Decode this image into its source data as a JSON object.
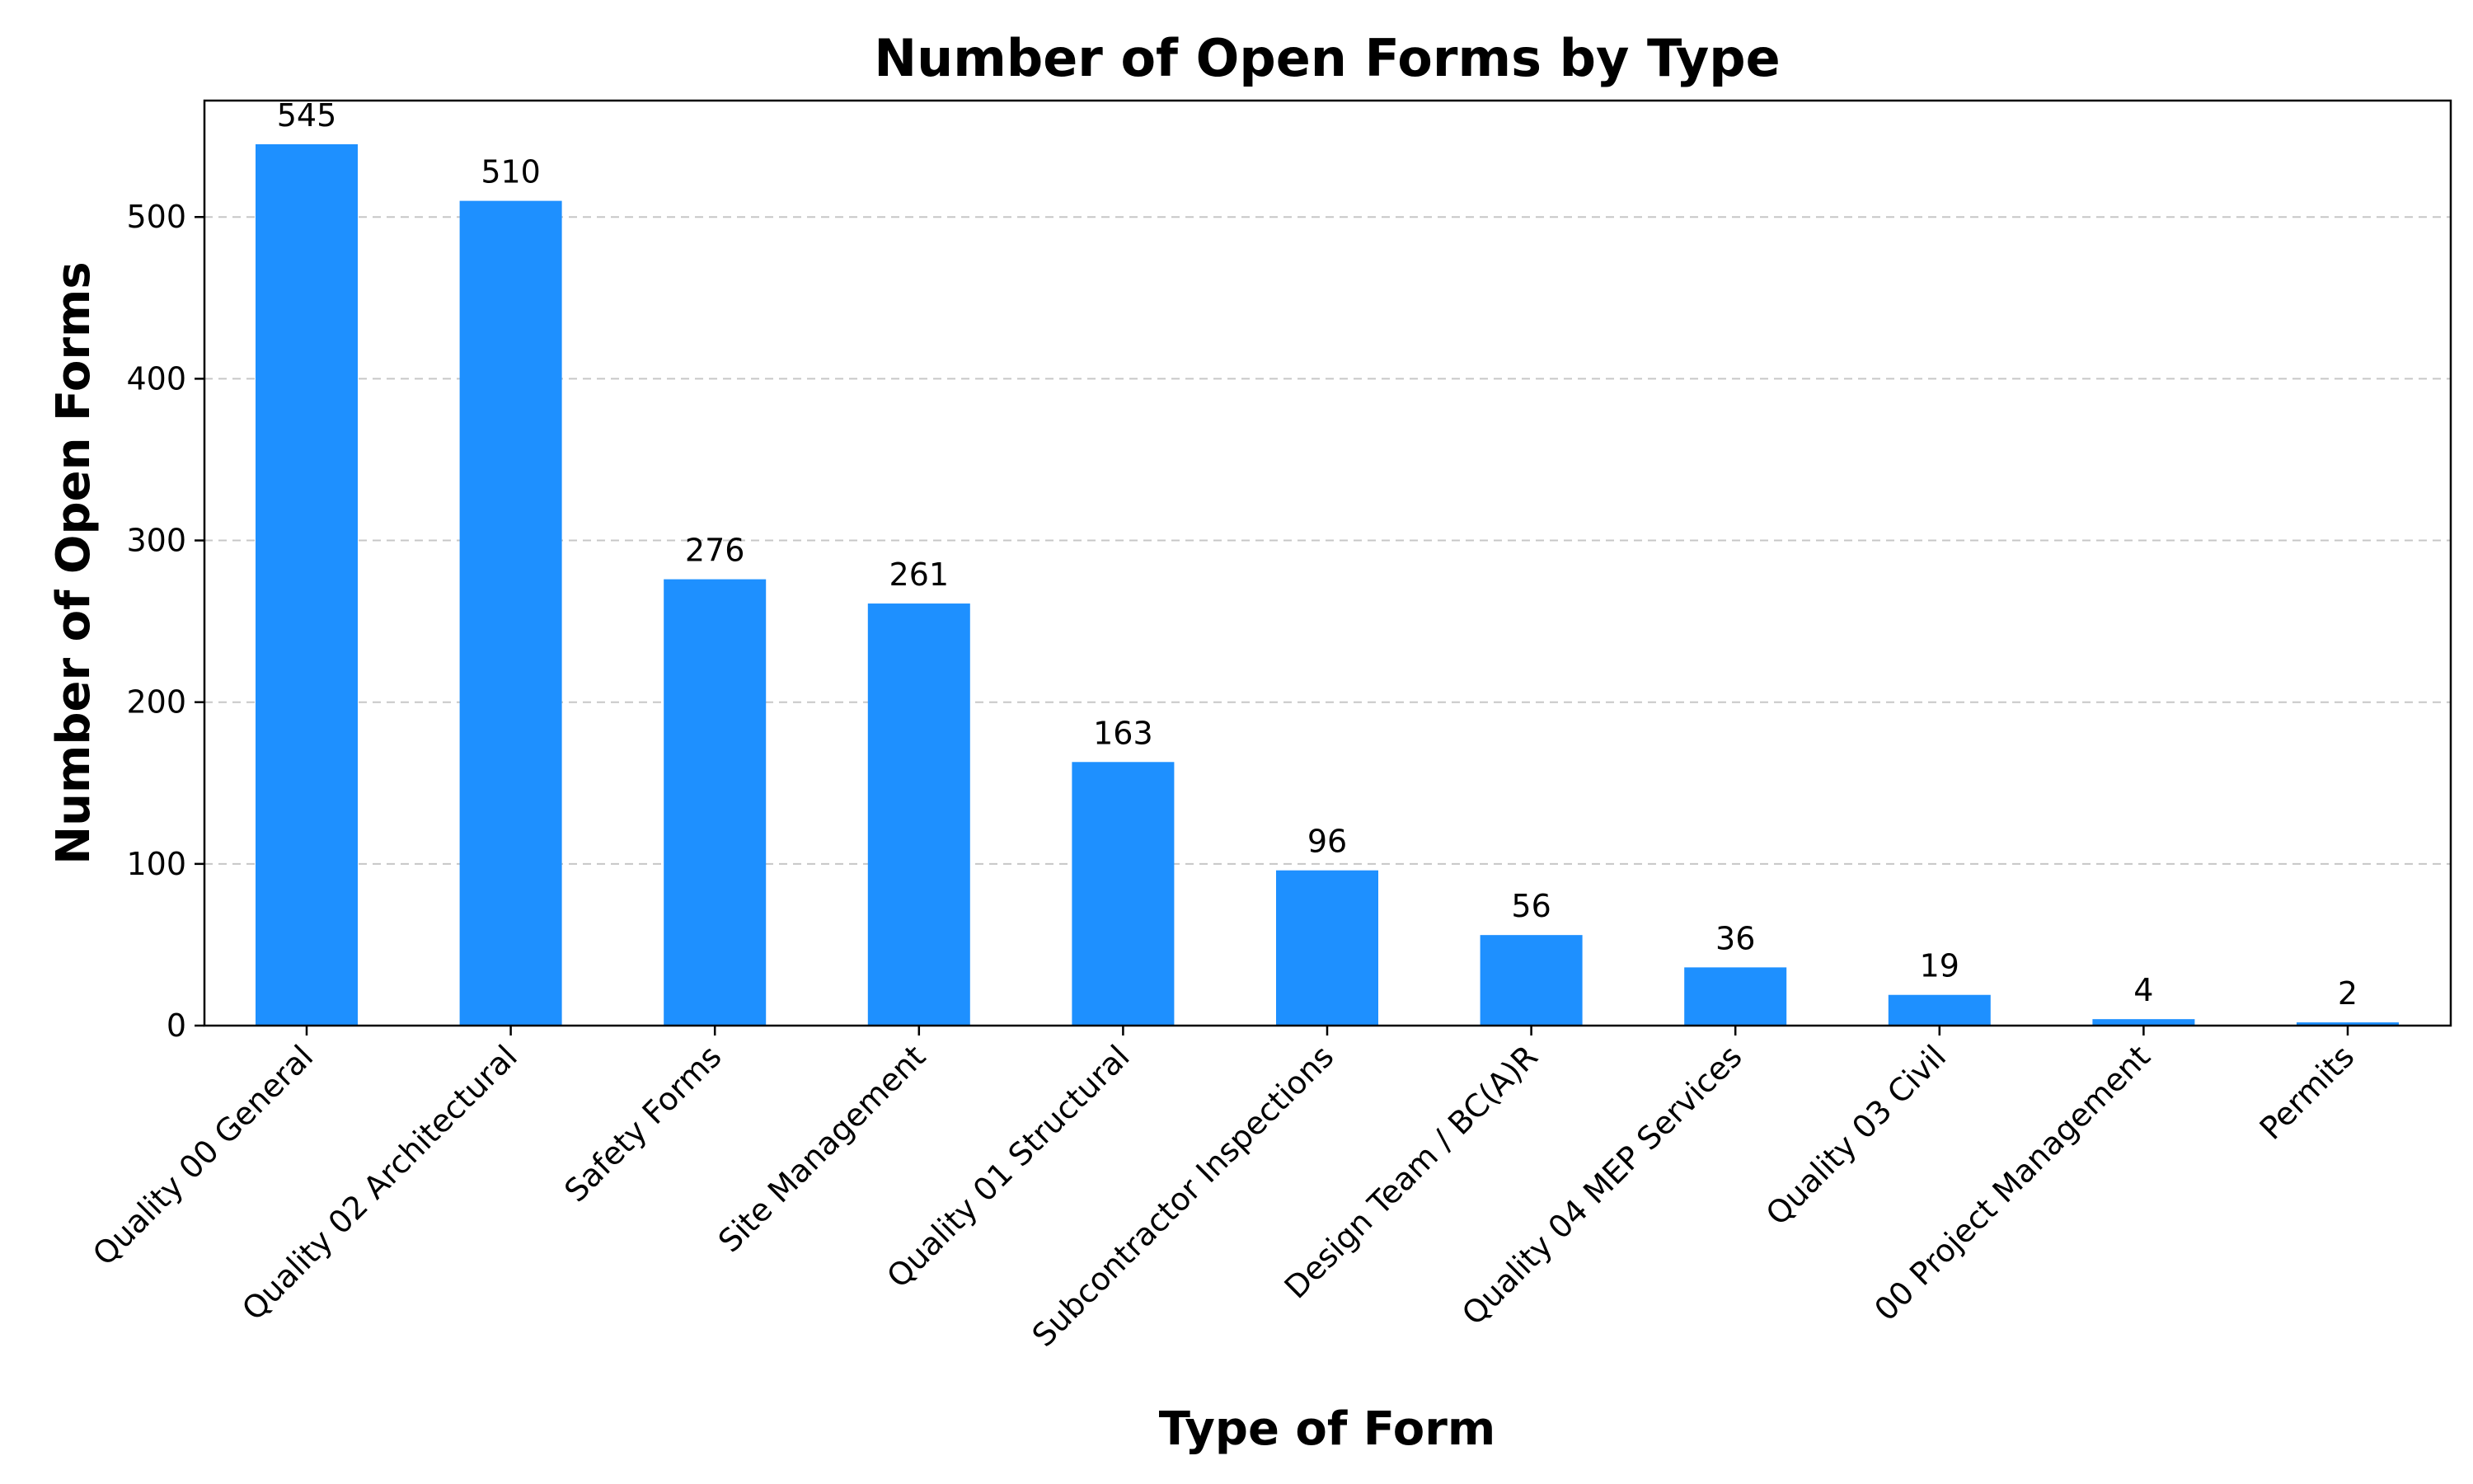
{
  "chart_data": {
    "type": "bar",
    "title": "Number of Open Forms by Type",
    "xlabel": "Type of Form",
    "ylabel": "Number of Open Forms",
    "categories": [
      "Quality 00 General",
      "Quality 02 Architectural",
      "Safety Forms",
      "Site Management",
      "Quality 01 Structural",
      "Subcontractor Inspections",
      "Design Team / BC(A)R",
      "Quality 04 MEP Services",
      "Quality 03 Civil",
      "00 Project Management",
      "Permits"
    ],
    "values": [
      545,
      510,
      276,
      261,
      163,
      96,
      56,
      36,
      19,
      4,
      2
    ],
    "data_labels": [
      "545",
      "510",
      "276",
      "261",
      "163",
      "96",
      "56",
      "36",
      "19",
      "4",
      "2"
    ],
    "yticks": [
      0,
      100,
      200,
      300,
      400,
      500
    ],
    "ytick_labels": [
      "0",
      "100",
      "200",
      "300",
      "400",
      "500"
    ],
    "ylim": [
      0,
      572
    ],
    "grid": "y-dashed",
    "bar_color": "#1e90ff"
  }
}
